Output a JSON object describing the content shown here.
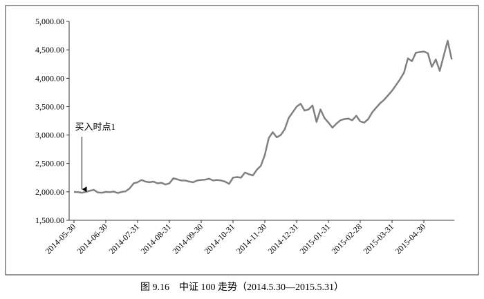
{
  "chart_data": {
    "type": "line",
    "caption": "图 9.16　中证 100 走势（2014.5.30—2015.5.31）",
    "annotation": "买入时点1",
    "categories": [
      "2014-05-30",
      null,
      null,
      null,
      null,
      null,
      null,
      null,
      "2014-06-30",
      null,
      null,
      null,
      null,
      null,
      null,
      null,
      "2014-07-31",
      null,
      null,
      null,
      null,
      null,
      null,
      null,
      "2014-08-31",
      null,
      null,
      null,
      null,
      null,
      null,
      null,
      "2014-09-30",
      null,
      null,
      null,
      null,
      null,
      null,
      null,
      "2014-10-31",
      null,
      null,
      null,
      null,
      null,
      null,
      null,
      "2014-11-30",
      null,
      null,
      null,
      null,
      null,
      null,
      null,
      "2014-12-31",
      null,
      null,
      null,
      null,
      null,
      null,
      null,
      "2015-01-31",
      null,
      null,
      null,
      null,
      null,
      null,
      null,
      "2015-02-28",
      null,
      null,
      null,
      null,
      null,
      null,
      null,
      "2015-03-31",
      null,
      null,
      null,
      null,
      null,
      null,
      null,
      "2015-04-30",
      null,
      null,
      null,
      null,
      null,
      null,
      null
    ],
    "values": [
      2000,
      1995,
      1985,
      2000,
      2020,
      2035,
      1990,
      1985,
      2000,
      1995,
      2005,
      1980,
      2000,
      2010,
      2060,
      2150,
      2170,
      2210,
      2180,
      2170,
      2180,
      2150,
      2160,
      2130,
      2150,
      2240,
      2220,
      2200,
      2200,
      2180,
      2170,
      2200,
      2210,
      2215,
      2230,
      2200,
      2210,
      2200,
      2180,
      2140,
      2250,
      2260,
      2250,
      2340,
      2310,
      2290,
      2390,
      2460,
      2650,
      2950,
      3050,
      2960,
      3000,
      3100,
      3300,
      3400,
      3500,
      3550,
      3430,
      3450,
      3520,
      3230,
      3450,
      3300,
      3220,
      3130,
      3200,
      3260,
      3280,
      3290,
      3260,
      3340,
      3240,
      3220,
      3280,
      3400,
      3480,
      3560,
      3620,
      3700,
      3780,
      3880,
      3980,
      4100,
      4350,
      4300,
      4450,
      4460,
      4470,
      4440,
      4200,
      4330,
      4130,
      4400,
      4660,
      4330
    ],
    "color": "#808080",
    "ylim": [
      1500,
      5000
    ],
    "yticks": [
      {
        "value": 1500,
        "label": "1,500.00"
      },
      {
        "value": 2000,
        "label": "2,000.00"
      },
      {
        "value": 2500,
        "label": "2,500.00"
      },
      {
        "value": 3000,
        "label": "3,000.00"
      },
      {
        "value": 3500,
        "label": "3,500.00"
      },
      {
        "value": 4000,
        "label": "4,000.00"
      },
      {
        "value": 4500,
        "label": "4,500.00"
      },
      {
        "value": 5000,
        "label": "5,000.00"
      }
    ],
    "grid": false
  }
}
